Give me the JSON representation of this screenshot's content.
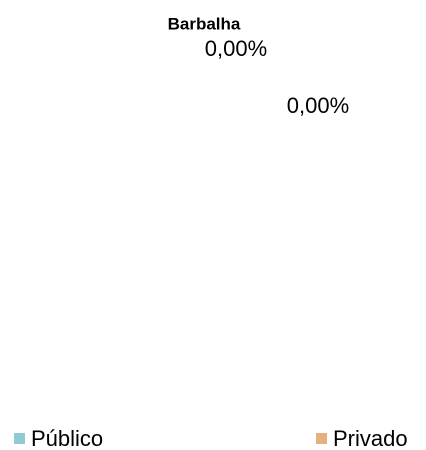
{
  "chart_data": {
    "type": "pie",
    "title": "Barbalha",
    "categories": [
      "Público",
      "Privado"
    ],
    "values": [
      0,
      0
    ],
    "value_labels": [
      "0,00%",
      "0,00%"
    ],
    "colors": [
      "#8fcbd1",
      "#e3b07e"
    ],
    "legend": "bottom"
  }
}
